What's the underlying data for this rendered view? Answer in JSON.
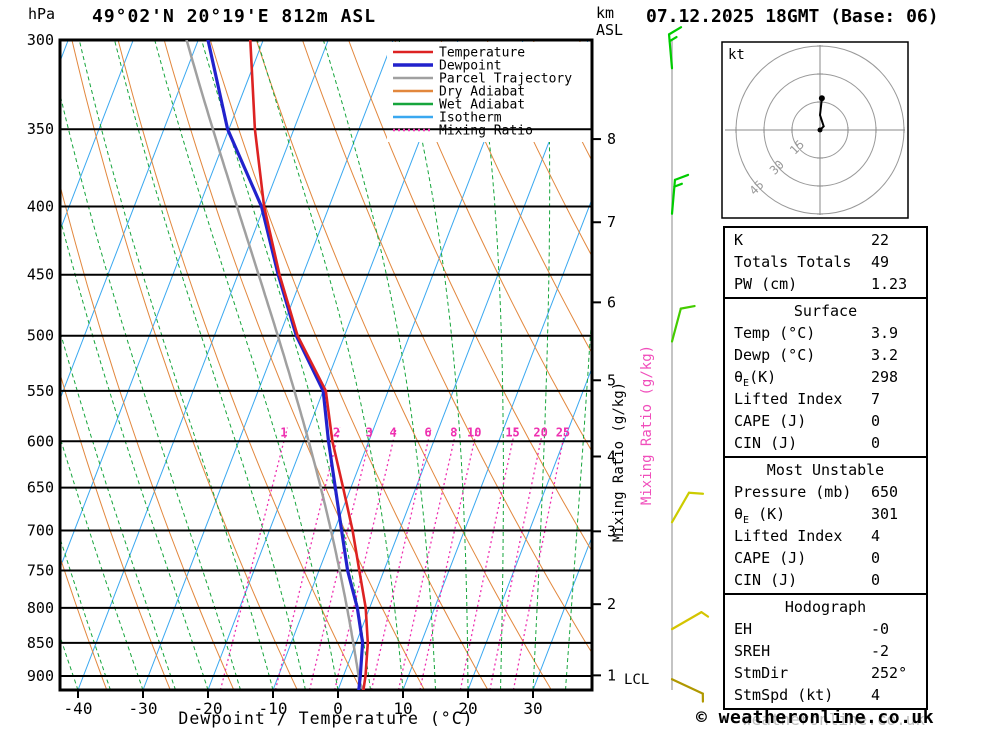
{
  "header": {
    "station": "49°02'N 20°19'E 812m ASL",
    "datetime": "07.12.2025 18GMT (Base: 06)",
    "pressure_unit": "hPa",
    "altitude_unit_line1": "km",
    "altitude_unit_line2": "ASL"
  },
  "legend": [
    {
      "label": "Temperature",
      "color": "#dd2222",
      "style": "solid"
    },
    {
      "label": "Dewpoint",
      "color": "#2222cc",
      "style": "solid"
    },
    {
      "label": "Parcel Trajectory",
      "color": "#a0a0a0",
      "style": "solid"
    },
    {
      "label": "Dry Adiabat",
      "color": "#e2873d",
      "style": "solid"
    },
    {
      "label": "Wet Adiabat",
      "color": "#16a53c",
      "style": "solid"
    },
    {
      "label": "Isotherm",
      "color": "#3aa8f0",
      "style": "solid"
    },
    {
      "label": "Mixing Ratio",
      "color": "#ee30b0",
      "style": "dotted"
    }
  ],
  "colors": {
    "temperature": "#dd2222",
    "dewpoint": "#2222cc",
    "parcel": "#a0a0a0",
    "dry_adiabat": "#e2873d",
    "wet_adiabat": "#16a53c",
    "isotherm": "#3aa8f0",
    "mixing_ratio": "#ee30b0"
  },
  "chart_data": {
    "type": "skewt-logp",
    "xlabel": "Dewpoint / Temperature (°C)",
    "x_ticks": [
      -40,
      -30,
      -20,
      -10,
      0,
      10,
      20,
      30
    ],
    "temp_axis_range_c": [
      -45,
      39
    ],
    "pressure_ticks": [
      300,
      350,
      400,
      450,
      500,
      550,
      600,
      650,
      700,
      750,
      800,
      850,
      900
    ],
    "pressure_range_hpa": [
      300,
      922
    ],
    "km_ticks": [
      1,
      2,
      3,
      4,
      5,
      6,
      7,
      8
    ],
    "mixing_ratio_lines": [
      1,
      2,
      3,
      4,
      6,
      8,
      10,
      15,
      20,
      25
    ],
    "mixing_ratio_axis_label": "Mixing Ratio (g/kg)",
    "lcl_label": "LCL",
    "sounding": {
      "pressure_hpa": [
        922,
        900,
        850,
        800,
        750,
        700,
        650,
        600,
        550,
        500,
        450,
        400,
        350,
        300
      ],
      "temperature_c": [
        3.9,
        3.4,
        1.8,
        -0.6,
        -3.8,
        -7.2,
        -11.2,
        -15.6,
        -19.6,
        -27.2,
        -33.6,
        -40.0,
        -46.0,
        -52.0
      ],
      "dewpoint_c": [
        3.2,
        2.6,
        1.0,
        -1.9,
        -5.6,
        -8.9,
        -12.4,
        -16.2,
        -20.0,
        -27.4,
        -33.8,
        -40.4,
        -50.2,
        -58.5
      ]
    },
    "parcel": {
      "surface_pressure_hpa": 922,
      "surface_temp_c": 3.9,
      "surface_dewp_c": 3.2
    },
    "wind_barbs": [
      {
        "pressure_hpa": 315,
        "speed_kt": 15,
        "dir_deg": 355,
        "color": "#00cc00"
      },
      {
        "pressure_hpa": 405,
        "speed_kt": 15,
        "dir_deg": 5,
        "color": "#00cc00"
      },
      {
        "pressure_hpa": 505,
        "speed_kt": 10,
        "dir_deg": 15,
        "color": "#44cc00"
      },
      {
        "pressure_hpa": 690,
        "speed_kt": 10,
        "dir_deg": 30,
        "color": "#cccc00"
      },
      {
        "pressure_hpa": 830,
        "speed_kt": 5,
        "dir_deg": 60,
        "color": "#d4c400"
      },
      {
        "pressure_hpa": 905,
        "speed_kt": 5,
        "dir_deg": 115,
        "color": "#b09800"
      }
    ]
  },
  "hodograph": {
    "unit_label": "kt",
    "rings_kt": [
      15,
      30,
      45
    ],
    "trace": [
      {
        "u": 0,
        "v": 0
      },
      {
        "u": 2,
        "v": 2
      },
      {
        "u": 0,
        "v": 8
      },
      {
        "u": 1,
        "v": 17
      }
    ]
  },
  "table": {
    "sections": [
      {
        "header": null,
        "rows": [
          [
            "K",
            "22"
          ],
          [
            "Totals Totals",
            "49"
          ],
          [
            "PW (cm)",
            "1.23"
          ]
        ]
      },
      {
        "header": "Surface",
        "rows": [
          [
            "Temp (°C)",
            "3.9"
          ],
          [
            "Dewp (°C)",
            "3.2"
          ],
          [
            "θE(K)",
            "298"
          ],
          [
            "Lifted Index",
            "7"
          ],
          [
            "CAPE (J)",
            "0"
          ],
          [
            "CIN (J)",
            "0"
          ]
        ]
      },
      {
        "header": "Most Unstable",
        "rows": [
          [
            "Pressure (mb)",
            "650"
          ],
          [
            "θE (K)",
            "301"
          ],
          [
            "Lifted Index",
            "4"
          ],
          [
            "CAPE (J)",
            "0"
          ],
          [
            "CIN (J)",
            "0"
          ]
        ]
      },
      {
        "header": "Hodograph",
        "rows": [
          [
            "EH",
            "-0"
          ],
          [
            "SREH",
            "-2"
          ],
          [
            "StmDir",
            "252°"
          ],
          [
            "StmSpd (kt)",
            "4"
          ]
        ]
      }
    ]
  },
  "copyright": "© weatheronline.co.uk",
  "watermark": "weatheronline.co.uk"
}
